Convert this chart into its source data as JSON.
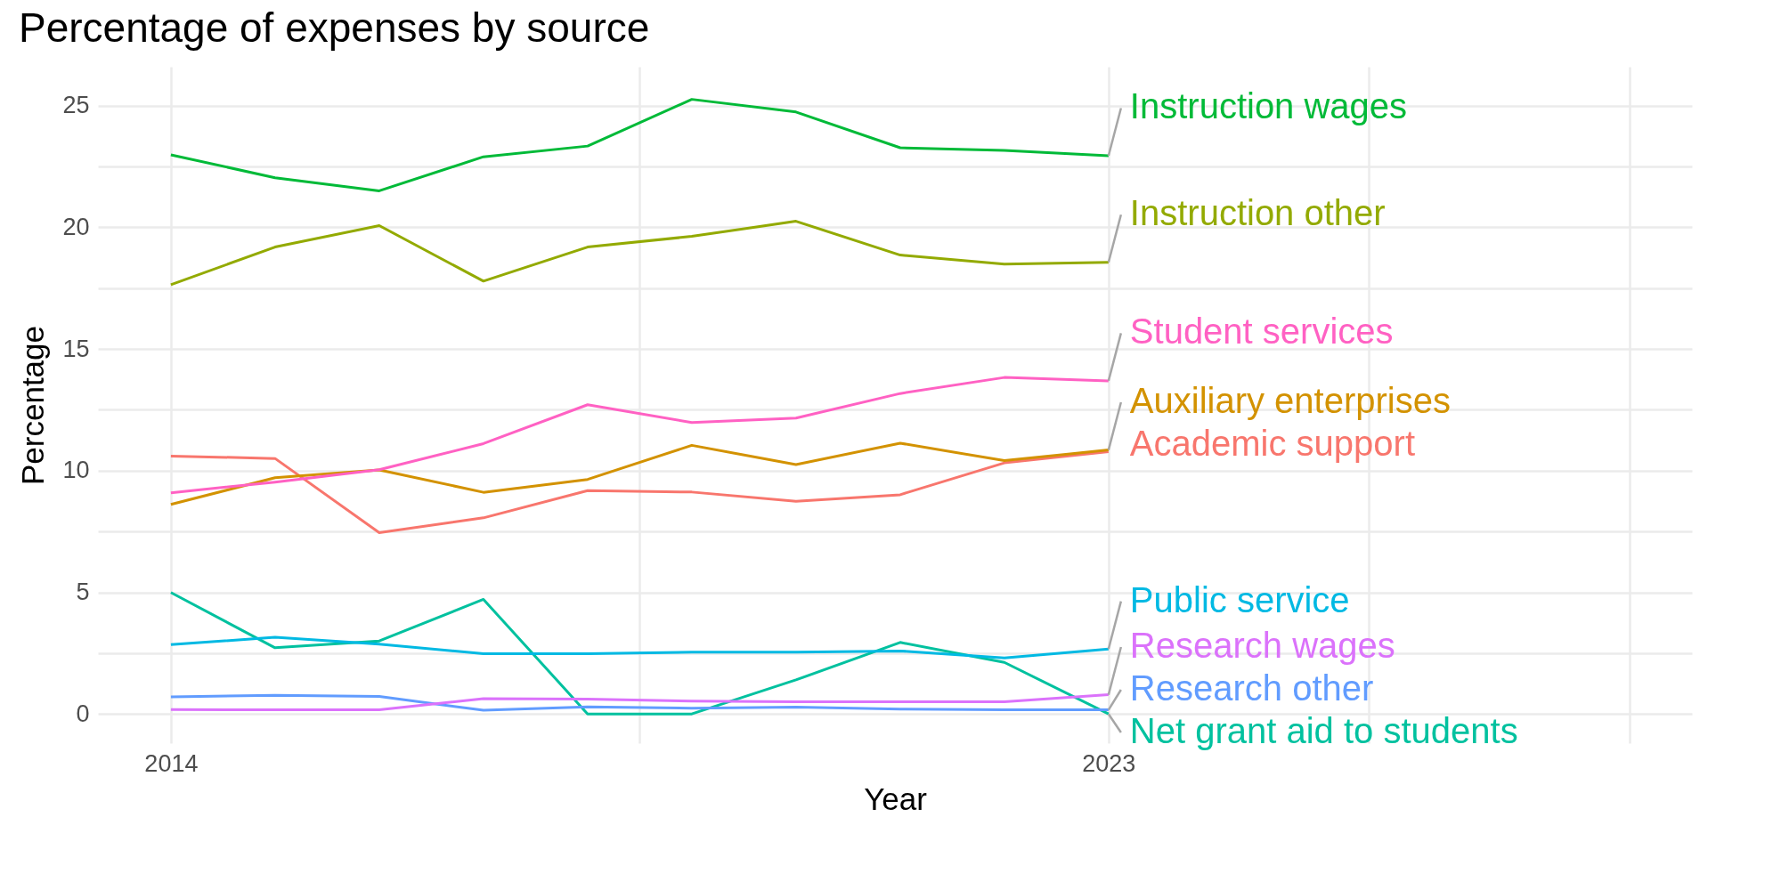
{
  "chart_data": {
    "type": "line",
    "title": "Percentage of expenses by source",
    "xlabel": "Year",
    "ylabel": "Percentage",
    "x": [
      2014,
      2015,
      2016,
      2017,
      2018,
      2019,
      2020,
      2021,
      2022,
      2023
    ],
    "xlim": [
      2013.3,
      2028.6
    ],
    "xticks": [
      2014,
      {
        "value": 2018.5,
        "label": null
      },
      2023,
      {
        "value": 2025.5,
        "label": null
      },
      {
        "value": 2028,
        "label": null
      }
    ],
    "ylim": [
      -1.2,
      26.6
    ],
    "yticks": [
      0,
      {
        "value": 2.5,
        "label": null
      },
      5,
      {
        "value": 7.5,
        "label": null
      },
      10,
      {
        "value": 12.5,
        "label": null
      },
      15,
      {
        "value": 17.5,
        "label": null
      },
      20,
      {
        "value": 22.5,
        "label": null
      },
      25
    ],
    "grid": true,
    "legend": false,
    "line_style": "solid",
    "marker": "none",
    "series": [
      {
        "name": "Academic support",
        "color": "#f8766d",
        "values": [
          10.6,
          10.5,
          7.45,
          8.06,
          9.18,
          9.12,
          8.74,
          9.01,
          10.32,
          10.78
        ]
      },
      {
        "name": "Auxiliary enterprises",
        "color": "#d39200",
        "values": [
          8.61,
          9.71,
          10.03,
          9.11,
          9.64,
          11.04,
          10.25,
          11.13,
          10.41,
          10.85
        ]
      },
      {
        "name": "Instruction other",
        "color": "#93aa00",
        "values": [
          17.64,
          19.19,
          20.07,
          17.79,
          19.19,
          19.63,
          20.25,
          18.86,
          18.49,
          18.56
        ]
      },
      {
        "name": "Instruction wages",
        "color": "#00ba38",
        "values": [
          22.98,
          22.04,
          21.5,
          22.9,
          23.34,
          25.26,
          24.74,
          23.27,
          23.16,
          22.94
        ]
      },
      {
        "name": "Net grant aid to students",
        "color": "#00c19f",
        "values": [
          4.99,
          2.72,
          3.0,
          4.71,
          0.0,
          0.0,
          1.4,
          2.94,
          2.12,
          0.0
        ]
      },
      {
        "name": "Public service",
        "color": "#00b9e3",
        "values": [
          2.85,
          3.15,
          2.87,
          2.48,
          2.48,
          2.54,
          2.54,
          2.59,
          2.3,
          2.67
        ]
      },
      {
        "name": "Research other",
        "color": "#619cff",
        "values": [
          0.7,
          0.77,
          0.72,
          0.15,
          0.29,
          0.24,
          0.28,
          0.2,
          0.17,
          0.17
        ]
      },
      {
        "name": "Research wages",
        "color": "#db72fb",
        "values": [
          0.18,
          0.17,
          0.17,
          0.63,
          0.61,
          0.53,
          0.5,
          0.5,
          0.5,
          0.79
        ]
      },
      {
        "name": "Student services",
        "color": "#ff61c3",
        "values": [
          9.09,
          9.53,
          10.04,
          11.11,
          12.71,
          11.98,
          12.16,
          13.17,
          13.83,
          13.69
        ]
      }
    ]
  }
}
